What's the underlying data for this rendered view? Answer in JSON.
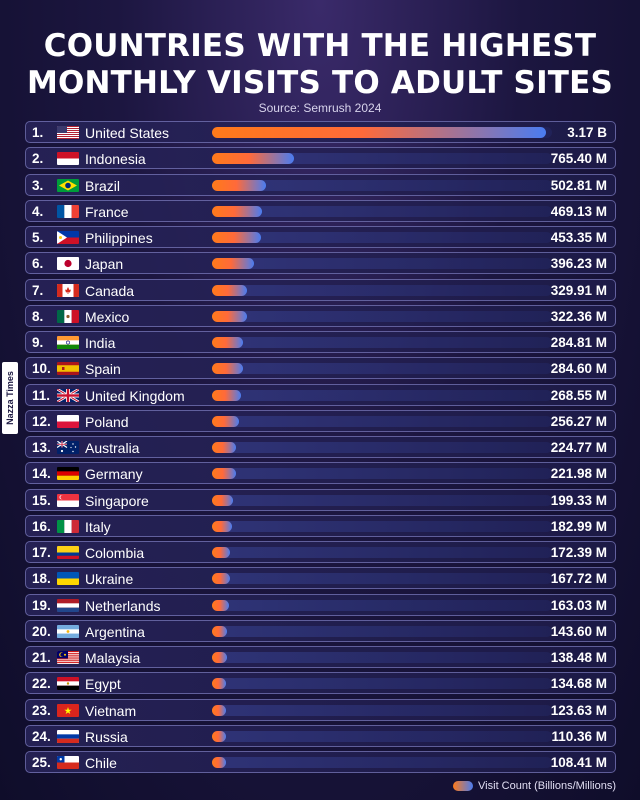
{
  "title_line1": "COUNTRIES WITH THE HIGHEST",
  "title_line2": "MONTHLY VISITS TO ADULT SITES",
  "source": "Source: Semrush 2024",
  "side_tag": "Nazza Times",
  "legend_label": "Visit Count (Billions/Millions)",
  "colors": {
    "bar_start": "#ff7a1a",
    "bar_end": "#4a7cf0",
    "background": "#1c1640"
  },
  "chart_data": {
    "type": "bar",
    "orientation": "horizontal",
    "unit": "millions",
    "title": "COUNTRIES WITH THE HIGHEST MONTHLY VISITS TO ADULT SITES",
    "xlim": [
      0,
      3170
    ],
    "categories": [
      "United States",
      "Indonesia",
      "Brazil",
      "France",
      "Philippines",
      "Japan",
      "Canada",
      "Mexico",
      "India",
      "Spain",
      "United Kingdom",
      "Poland",
      "Australia",
      "Germany",
      "Singapore",
      "Italy",
      "Colombia",
      "Ukraine",
      "Netherlands",
      "Argentina",
      "Malaysia",
      "Egypt",
      "Vietnam",
      "Russia",
      "Chile"
    ],
    "ranks": [
      "1.",
      "2.",
      "3.",
      "4.",
      "5.",
      "6.",
      "7.",
      "8.",
      "9.",
      "10.",
      "11.",
      "12.",
      "13.",
      "14.",
      "15.",
      "16.",
      "17.",
      "18.",
      "19.",
      "20.",
      "21.",
      "22.",
      "23.",
      "24.",
      "25."
    ],
    "values": [
      3170,
      765.4,
      502.81,
      469.13,
      453.35,
      396.23,
      329.91,
      322.36,
      284.81,
      284.6,
      268.55,
      256.27,
      224.77,
      221.98,
      199.33,
      182.99,
      172.39,
      167.72,
      163.03,
      143.6,
      138.48,
      134.68,
      123.63,
      110.36,
      108.41
    ],
    "value_labels": [
      "3.17 B",
      "765.40 M",
      "502.81 M",
      "469.13 M",
      "453.35 M",
      "396.23 M",
      "329.91 M",
      "322.36 M",
      "284.81 M",
      "284.60 M",
      "268.55 M",
      "256.27 M",
      "224.77 M",
      "221.98 M",
      "199.33 M",
      "182.99 M",
      "172.39 M",
      "167.72 M",
      "163.03 M",
      "143.60 M",
      "138.48 M",
      "134.68 M",
      "123.63 M",
      "110.36 M",
      "108.41 M"
    ],
    "flags": [
      "us-flag",
      "id-flag",
      "br-flag",
      "fr-flag",
      "ph-flag",
      "jp-flag",
      "ca-flag",
      "mx-flag",
      "in-flag",
      "es-flag",
      "gb-flag",
      "pl-flag",
      "au-flag",
      "de-flag",
      "sg-flag",
      "it-flag",
      "co-flag",
      "ua-flag",
      "nl-flag",
      "ar-flag",
      "my-flag",
      "eg-flag",
      "vn-flag",
      "ru-flag",
      "cl-flag"
    ]
  }
}
